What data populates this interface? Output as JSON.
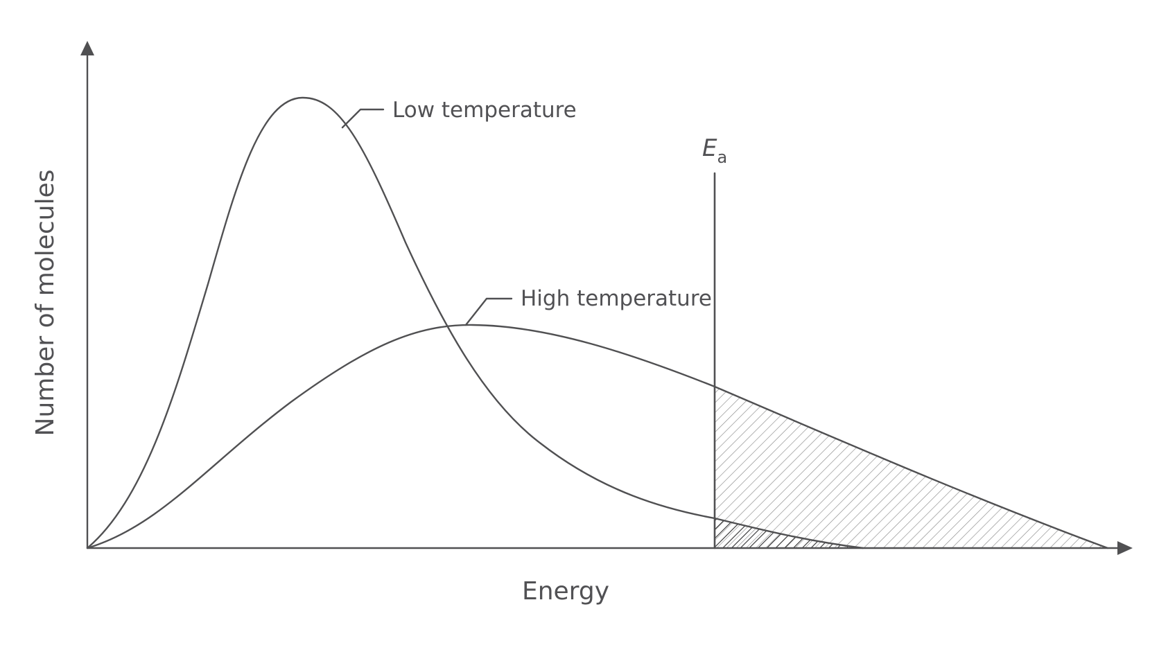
{
  "chart_data": {
    "type": "line",
    "title": "",
    "xlabel": "Energy",
    "ylabel": "Number of molecules",
    "x_tick_labels": [],
    "y_tick_labels": [],
    "grid": false,
    "legend": "none",
    "series": [
      {
        "name": "Low temperature",
        "annotation_label": "Low temperature",
        "color": "#505052"
      },
      {
        "name": "High temperature",
        "annotation_label": "High temperature",
        "color": "#505052"
      }
    ],
    "threshold": {
      "label_main": "E",
      "label_sub": "a",
      "description": "activation energy marker"
    },
    "shaded_regions": [
      {
        "series": "High temperature",
        "pattern": "light diagonal hatch",
        "color": "#8a8a8a"
      },
      {
        "series": "Low temperature",
        "pattern": "dark diagonal hatch",
        "color": "#2f2f30"
      }
    ]
  },
  "colors": {
    "axis": "#505052",
    "text": "#515154",
    "light_hatch": "#8a8a8a",
    "dark_hatch": "#2f2f30",
    "background": "#ffffff"
  }
}
